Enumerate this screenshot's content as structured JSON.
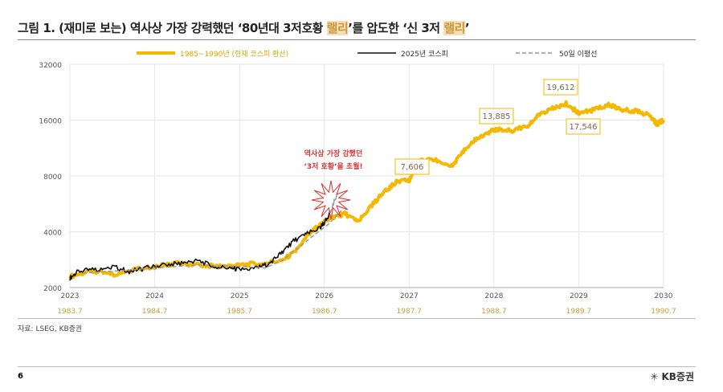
{
  "title": {
    "pre": "그림 1. (재미로 보는) 역사상 가장 강력했던 ‘80년대 3저호황 ",
    "hl1": "랠리",
    "mid": "’를 압도한 ‘신 3저 ",
    "hl2": "랠리",
    "post": "’"
  },
  "source": "자료: LSEG, KB증권",
  "page": "6",
  "logo": "KB증권",
  "chart_data": {
    "type": "line",
    "y_scale": "log2",
    "ylim": [
      2000,
      32000
    ],
    "yticks": [
      2000,
      4000,
      8000,
      16000,
      32000
    ],
    "xlim": [
      2023,
      2030
    ],
    "xticks": [
      "2023",
      "2024",
      "2025",
      "2026",
      "2027",
      "2028",
      "2029",
      "2030"
    ],
    "xticks2": [
      "1983.7",
      "1984.7",
      "1985.7",
      "1986.7",
      "1987.7",
      "1988.7",
      "1989.7",
      "1990.7"
    ],
    "grid": true,
    "legend": "top",
    "colors": {
      "gold": "#f5b800",
      "black": "#111111",
      "ma": "#999999",
      "annot": "#e03030"
    },
    "series": [
      {
        "name": "1985~1990년 (현재 코스피 환산)",
        "style": "gold",
        "x": [
          2023,
          2023.25,
          2023.5,
          2023.75,
          2024,
          2024.25,
          2024.5,
          2024.75,
          2025,
          2025.25,
          2025.5,
          2025.65,
          2025.8,
          2025.95,
          2026.1,
          2026.25,
          2026.4,
          2026.55,
          2026.7,
          2026.85,
          2027,
          2027.1,
          2027.3,
          2027.5,
          2027.65,
          2027.8,
          2027.95,
          2028.05,
          2028.2,
          2028.4,
          2028.55,
          2028.7,
          2028.85,
          2029,
          2029.15,
          2029.35,
          2029.5,
          2029.7,
          2029.85,
          2029.92,
          2030
        ],
        "values": [
          2300,
          2450,
          2350,
          2500,
          2600,
          2700,
          2650,
          2600,
          2650,
          2700,
          2800,
          3100,
          3800,
          4400,
          4800,
          5000,
          4500,
          5500,
          6500,
          7400,
          7606,
          9600,
          9800,
          9000,
          11000,
          12800,
          13885,
          14300,
          14000,
          15000,
          17300,
          18500,
          19612,
          17546,
          18000,
          19400,
          18200,
          17900,
          16800,
          15200,
          16000
        ]
      },
      {
        "name": "2025년 코스피",
        "style": "black",
        "x": [
          2023,
          2023.1,
          2023.3,
          2023.5,
          2023.7,
          2023.9,
          2024.1,
          2024.3,
          2024.5,
          2024.7,
          2024.9,
          2025,
          2025.2,
          2025.35,
          2025.5,
          2025.65,
          2025.8,
          2025.95,
          2026.05,
          2026.15
        ],
        "values": [
          2250,
          2450,
          2500,
          2600,
          2450,
          2550,
          2650,
          2700,
          2800,
          2600,
          2550,
          2500,
          2550,
          2700,
          3100,
          3600,
          3900,
          4200,
          4800,
          6400
        ]
      },
      {
        "name": "50일 이평선",
        "style": "ma",
        "x": [
          2023.15,
          2023.5,
          2024,
          2024.5,
          2025,
          2025.3,
          2025.5,
          2025.7,
          2025.9,
          2026.05,
          2026.2
        ],
        "values": [
          2400,
          2450,
          2550,
          2650,
          2600,
          2550,
          2800,
          3300,
          3900,
          4400,
          5200
        ]
      }
    ],
    "annotations": [
      "7,606",
      "13,885",
      "19,612",
      "17,546"
    ],
    "callout": [
      "역사상 가장 강했던",
      "‘3저 호황’을 초월!"
    ]
  }
}
